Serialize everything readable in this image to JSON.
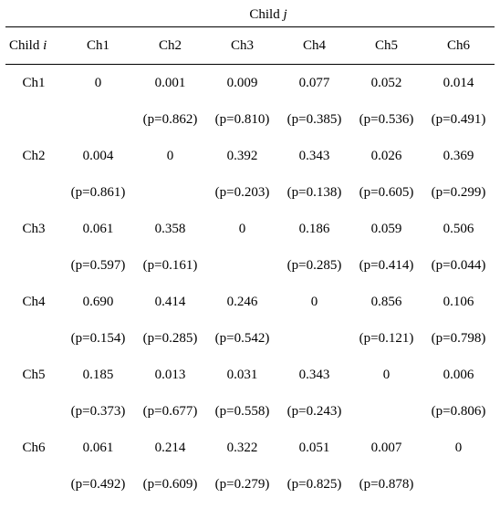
{
  "title_prefix": "Child ",
  "title_var": "j",
  "rowhdr_prefix": "Child ",
  "rowhdr_var": "i",
  "col_labels": [
    "Ch1",
    "Ch2",
    "Ch3",
    "Ch4",
    "Ch5",
    "Ch6"
  ],
  "row_labels": [
    "Ch1",
    "Ch2",
    "Ch3",
    "Ch4",
    "Ch5",
    "Ch6"
  ],
  "values": [
    [
      "0",
      "0.001",
      "0.009",
      "0.077",
      "0.052",
      "0.014"
    ],
    [
      "0.004",
      "0",
      "0.392",
      "0.343",
      "0.026",
      "0.369"
    ],
    [
      "0.061",
      "0.358",
      "0",
      "0.186",
      "0.059",
      "0.506"
    ],
    [
      "0.690",
      "0.414",
      "0.246",
      "0",
      "0.856",
      "0.106"
    ],
    [
      "0.185",
      "0.013",
      "0.031",
      "0.343",
      "0",
      "0.006"
    ],
    [
      "0.061",
      "0.214",
      "0.322",
      "0.051",
      "0.007",
      "0"
    ]
  ],
  "pvalues": [
    [
      "",
      "(p=0.862)",
      "(p=0.810)",
      "(p=0.385)",
      "(p=0.536)",
      "(p=0.491)"
    ],
    [
      "(p=0.861)",
      "",
      "(p=0.203)",
      "(p=0.138)",
      "(p=0.605)",
      "(p=0.299)"
    ],
    [
      "(p=0.597)",
      "(p=0.161)",
      "",
      "(p=0.285)",
      "(p=0.414)",
      "(p=0.044)"
    ],
    [
      "(p=0.154)",
      "(p=0.285)",
      "(p=0.542)",
      "",
      "(p=0.121)",
      "(p=0.798)"
    ],
    [
      "(p=0.373)",
      "(p=0.677)",
      "(p=0.558)",
      "(p=0.243)",
      "",
      "(p=0.806)"
    ],
    [
      "(p=0.492)",
      "(p=0.609)",
      "(p=0.279)",
      "(p=0.825)",
      "(p=0.878)",
      ""
    ]
  ],
  "colors": {
    "text": "#000000",
    "background": "#ffffff",
    "rule": "#000000"
  },
  "font_family": "Times New Roman",
  "font_size_pt": 11
}
